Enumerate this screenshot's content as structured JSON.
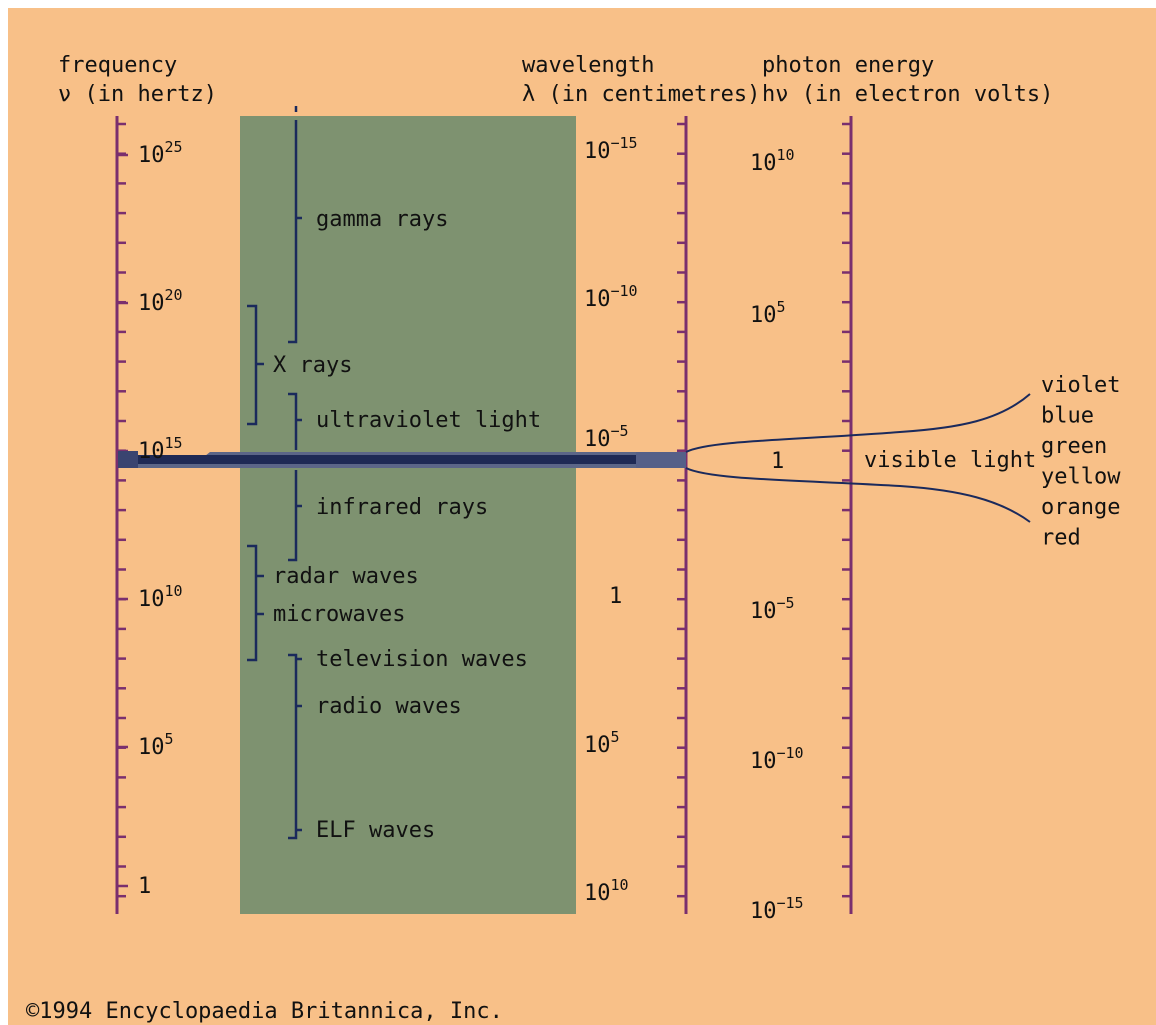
{
  "colors": {
    "background": "#F8C088",
    "band": "#7E9270",
    "scale": "#7A2F6E",
    "bracket": "#1B2A5C",
    "visible_band": "#1F2A55"
  },
  "headers": {
    "frequency": {
      "line1": "frequency",
      "line2": "ν (in hertz)"
    },
    "wavelength": {
      "line1": "wavelength",
      "line2": "λ (in centimetres)"
    },
    "energy": {
      "line1": "photon energy",
      "line2": "hν (in electron volts)"
    }
  },
  "frequency_labels": [
    {
      "base": "10",
      "exp": "25"
    },
    {
      "base": "10",
      "exp": "20"
    },
    {
      "base": "10",
      "exp": "15"
    },
    {
      "base": "10",
      "exp": "10"
    },
    {
      "base": "10",
      "exp": "5"
    },
    {
      "base": "1",
      "exp": ""
    }
  ],
  "wavelength_labels": [
    {
      "base": "10",
      "exp": "−15"
    },
    {
      "base": "10",
      "exp": "−10"
    },
    {
      "base": "10",
      "exp": "−5"
    },
    {
      "base": "1",
      "exp": ""
    },
    {
      "base": "10",
      "exp": "5"
    },
    {
      "base": "10",
      "exp": "10"
    }
  ],
  "energy_labels": [
    {
      "base": "10",
      "exp": "10"
    },
    {
      "base": "10",
      "exp": "5"
    },
    {
      "base": "1",
      "exp": ""
    },
    {
      "base": "10",
      "exp": "−5"
    },
    {
      "base": "10",
      "exp": "−10"
    },
    {
      "base": "10",
      "exp": "−15"
    }
  ],
  "bands": [
    "gamma rays",
    "X rays",
    "ultraviolet light",
    "infrared rays",
    "radar waves",
    "microwaves",
    "television waves",
    "radio waves",
    "ELF waves"
  ],
  "visible": {
    "label": "visible light",
    "colors": [
      "violet",
      "blue",
      "green",
      "yellow",
      "orange",
      "red"
    ]
  },
  "copyright": "©1994 Encyclopaedia Britannica, Inc."
}
